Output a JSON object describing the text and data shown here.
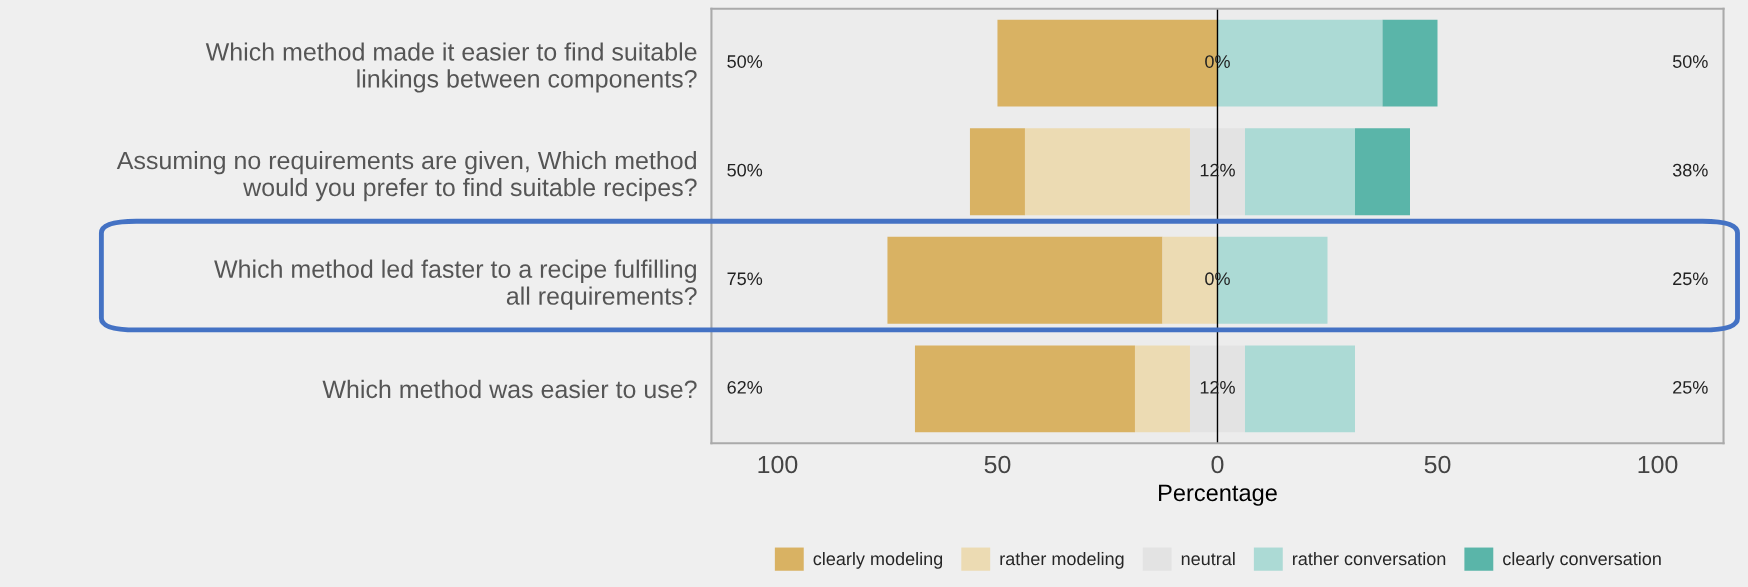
{
  "chart_data": {
    "type": "bar",
    "orientation": "horizontal",
    "xlabel": "Percentage",
    "categories": [
      "Which method made it easier to find suitable\nlinkings between components?",
      "Assuming no requirements are given, Which method\nwould you prefer to find suitable recipes?",
      "Which method led faster to a recipe fulfilling\nall requirements?",
      "Which method was easier to use?"
    ],
    "series": [
      {
        "name": "clearly modeling",
        "color": "#d9b263",
        "values": [
          50,
          12.5,
          62.5,
          50
        ],
        "base": [
          -50,
          -56.25,
          -75,
          -68.75
        ]
      },
      {
        "name": "rather modeling",
        "color": "#ecdbb3",
        "values": [
          0,
          37.5,
          12.5,
          12.5
        ],
        "base": [
          null,
          -43.75,
          -12.5,
          -18.75
        ]
      },
      {
        "name": "neutral",
        "color": "#e3e3e3",
        "values": [
          0,
          12.5,
          0,
          12.5
        ],
        "base": [
          null,
          -6.25,
          null,
          -6.25
        ]
      },
      {
        "name": "rather conversation",
        "color": "#acdad5",
        "values": [
          37.5,
          25,
          25,
          25
        ],
        "base": [
          0,
          6.25,
          0,
          6.25
        ]
      },
      {
        "name": "clearly conversation",
        "color": "#5ab5a9",
        "values": [
          12.5,
          12.5,
          0,
          0
        ],
        "base": [
          37.5,
          31.25,
          null,
          null
        ]
      }
    ],
    "xlim": [
      -115,
      115
    ],
    "xticks": [
      {
        "value": -100,
        "label": "100"
      },
      {
        "value": -50,
        "label": "50"
      },
      0,
      50,
      100
    ],
    "ref_lines": [
      {
        "axis": "x",
        "value": 0,
        "color": "#000000"
      }
    ],
    "annotations": [
      "50%",
      "0%",
      "50%",
      "50%",
      "12%",
      "38%",
      "75%",
      "0%",
      "25%",
      "62%",
      "12%",
      "25%"
    ],
    "grid": false,
    "legend": "bottom"
  }
}
